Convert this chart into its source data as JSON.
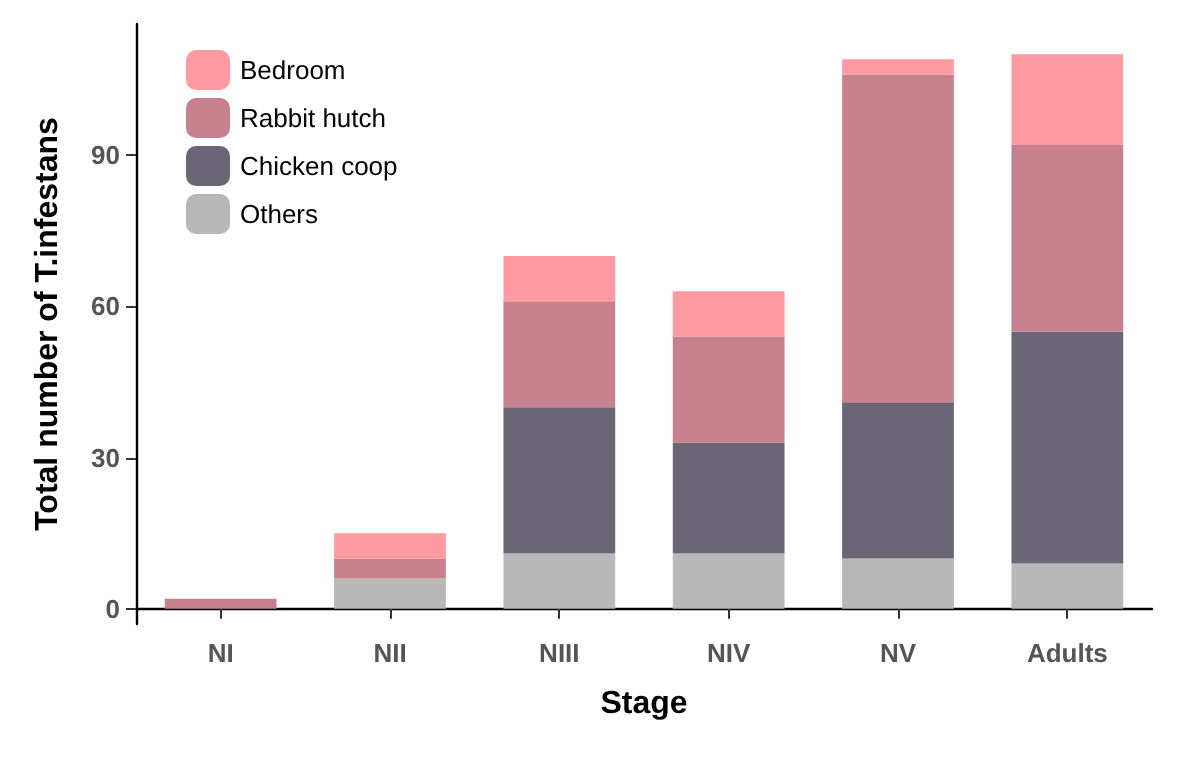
{
  "chart_data": {
    "type": "bar",
    "stacked": true,
    "xlabel": "Stage",
    "ylabel": "Total number of T.infestans",
    "categories": [
      "NI",
      "NII",
      "NIII",
      "NIV",
      "NV",
      "Adults"
    ],
    "series": [
      {
        "name": "Others",
        "color": "#b8b8b8",
        "values": [
          0,
          6,
          11,
          11,
          10,
          9
        ]
      },
      {
        "name": "Chicken coop",
        "color": "#6b6575",
        "values": [
          0,
          0,
          29,
          22,
          31,
          46
        ]
      },
      {
        "name": "Rabbit hutch",
        "color": "#c7808e",
        "values": [
          2,
          4,
          21,
          21,
          65,
          37
        ]
      },
      {
        "name": "Bedroom",
        "color": "#fe9aa1",
        "values": [
          0,
          5,
          9,
          9,
          3,
          18
        ]
      }
    ],
    "ylim": [
      -3,
      116
    ],
    "yticks": [
      0,
      30,
      60,
      90
    ],
    "grid": false,
    "legend": "top left"
  }
}
